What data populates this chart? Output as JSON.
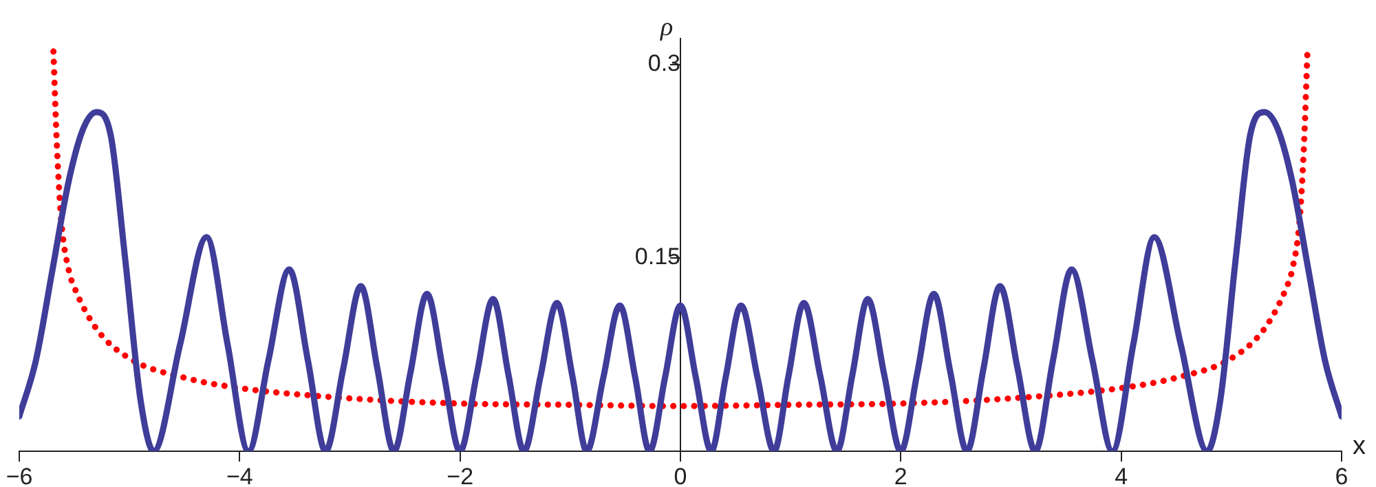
{
  "chart_data": {
    "type": "line",
    "xlabel": "x",
    "ylabel": "ρ",
    "xlim": [
      -6,
      6
    ],
    "ylim": [
      0,
      0.32
    ],
    "xticks": [
      {
        "value": -6,
        "label": "−6"
      },
      {
        "value": -4,
        "label": "−4"
      },
      {
        "value": -2,
        "label": "−2"
      },
      0,
      2,
      4,
      6
    ],
    "yticks": [
      0.15,
      0.3
    ],
    "grid": false,
    "legend": false,
    "series": [
      {
        "color": "#3f3d99",
        "line_style": "solid",
        "x": [
          -6,
          -5.85,
          -5.7,
          -5.55,
          -5.42,
          -5.3,
          -5.17,
          -5.04,
          -4.9,
          -4.78,
          -4.54,
          -4.3,
          -4.11,
          -3.92,
          -3.74,
          -3.55,
          -3.38,
          -3.22,
          -3.06,
          -2.9,
          -2.75,
          -2.6,
          -2.45,
          -2.3,
          -2.15,
          -2,
          -1.85,
          -1.7,
          -1.56,
          -1.42,
          -1.27,
          -1.12,
          -0.98,
          -0.85,
          -0.7,
          -0.55,
          -0.41,
          -0.28,
          -0.14,
          0,
          0.14,
          0.28,
          0.41,
          0.55,
          0.7,
          0.85,
          0.98,
          1.12,
          1.27,
          1.42,
          1.56,
          1.7,
          1.85,
          2,
          2.15,
          2.3,
          2.45,
          2.6,
          2.75,
          2.9,
          3.06,
          3.22,
          3.38,
          3.55,
          3.74,
          3.92,
          4.11,
          4.3,
          4.54,
          4.78,
          4.9,
          5.04,
          5.17,
          5.3,
          5.42,
          5.55,
          5.7,
          5.85,
          6
        ],
        "values": [
          0.027,
          0.07,
          0.14,
          0.21,
          0.25,
          0.263,
          0.245,
          0.15,
          0.04,
          0,
          0.083,
          0.166,
          0.083,
          0,
          0.07,
          0.141,
          0.07,
          0,
          0.064,
          0.128,
          0.064,
          0,
          0.061,
          0.122,
          0.061,
          0,
          0.059,
          0.118,
          0.059,
          0,
          0.058,
          0.115,
          0.058,
          0,
          0.057,
          0.113,
          0.057,
          0,
          0.057,
          0.113,
          0.057,
          0,
          0.057,
          0.113,
          0.057,
          0,
          0.058,
          0.115,
          0.058,
          0,
          0.059,
          0.118,
          0.059,
          0,
          0.061,
          0.122,
          0.061,
          0,
          0.064,
          0.128,
          0.064,
          0,
          0.07,
          0.141,
          0.07,
          0,
          0.083,
          0.166,
          0.083,
          0,
          0.04,
          0.15,
          0.245,
          0.263,
          0.25,
          0.21,
          0.14,
          0.07,
          0.027
        ]
      },
      {
        "color": "#ff0000",
        "line_style": "dotted",
        "x": [
          -5.69,
          -5.66,
          -5.62,
          -5.55,
          -5.5,
          -5.3,
          -5,
          -4.5,
          -4,
          -3,
          -2,
          -1,
          0,
          1,
          2,
          3,
          4,
          4.5,
          5,
          5.3,
          5.5,
          5.55,
          5.62,
          5.66,
          5.69
        ],
        "values": [
          0.31,
          0.24,
          0.18,
          0.14,
          0.127,
          0.095,
          0.072,
          0.057,
          0.049,
          0.041,
          0.037,
          0.036,
          0.035,
          0.036,
          0.037,
          0.041,
          0.049,
          0.057,
          0.072,
          0.095,
          0.127,
          0.14,
          0.18,
          0.24,
          0.31
        ]
      }
    ]
  }
}
